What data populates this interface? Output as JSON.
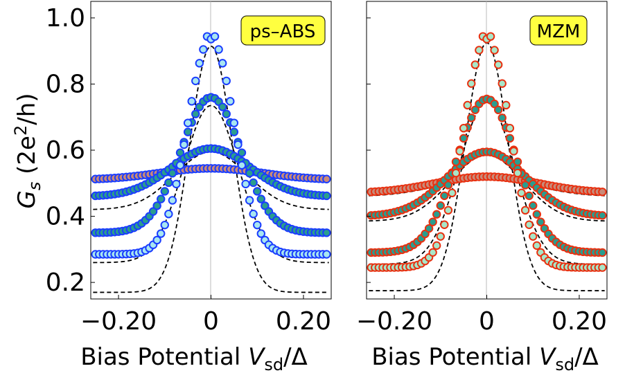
{
  "chart_data": [
    {
      "type": "scatter",
      "badge": "ps–ABS",
      "ylabel_main": "G",
      "ylabel_sub": "s",
      "ylabel_unit_open": " (2e",
      "ylabel_unit_sup": "2",
      "ylabel_unit_close": "/h)",
      "xlabel_main": "Bias Potential ",
      "xlabel_var": "V",
      "xlabel_sub": "sd",
      "xlabel_tail": "/Δ",
      "xlim": [
        -0.26,
        0.26
      ],
      "ylim": [
        0.15,
        1.05
      ],
      "xticks": [
        -0.2,
        0,
        0.2
      ],
      "xtick_labels": [
        "−0.20",
        "0",
        "0.20"
      ],
      "yticks": [
        0.2,
        0.4,
        0.6,
        0.8,
        1.0
      ],
      "ytick_labels": [
        "0.2",
        "0.4",
        "0.6",
        "0.8",
        "1.0"
      ],
      "series": [
        {
          "edge": "#1a3cff",
          "fill": "#c98a78",
          "peak": 0.545,
          "tail": 0.51,
          "width": 0.11,
          "fit_peak": 0.545,
          "fit_tail": 0.505
        },
        {
          "edge": "#1a3cff",
          "fill": "#2a9d8f",
          "peak": 0.605,
          "tail": 0.46,
          "width": 0.085,
          "fit_peak": 0.595,
          "fit_tail": 0.42
        },
        {
          "edge": "#1a3cff",
          "fill": "#2a9d8f",
          "peak": 0.76,
          "tail": 0.35,
          "width": 0.065,
          "fit_peak": 0.735,
          "fit_tail": 0.26
        },
        {
          "edge": "#1a3cff",
          "fill": "#a8e6f0",
          "peak": 0.94,
          "tail": 0.285,
          "width": 0.05,
          "fit_peak": 0.915,
          "fit_tail": 0.17
        }
      ]
    },
    {
      "type": "scatter",
      "badge": "MZM",
      "xlabel_main": "Bias Potential ",
      "xlabel_var": "V",
      "xlabel_sub": "sd",
      "xlabel_tail": "/Δ",
      "xlim": [
        -0.26,
        0.26
      ],
      "ylim": [
        0.15,
        1.05
      ],
      "xticks": [
        -0.2,
        0,
        0.2
      ],
      "xtick_labels": [
        "−0.20",
        "0",
        "0.20"
      ],
      "yticks": [
        0.2,
        0.4,
        0.6,
        0.8,
        1.0
      ],
      "series": [
        {
          "edge": "#e83010",
          "fill": "#c98a78",
          "peak": 0.52,
          "tail": 0.47,
          "width": 0.11,
          "fit_peak": 0.515,
          "fit_tail": 0.46
        },
        {
          "edge": "#e83010",
          "fill": "#2a9d8f",
          "peak": 0.595,
          "tail": 0.4,
          "width": 0.085,
          "fit_peak": 0.585,
          "fit_tail": 0.385
        },
        {
          "edge": "#e83010",
          "fill": "#2a9d8f",
          "peak": 0.755,
          "tail": 0.29,
          "width": 0.065,
          "fit_peak": 0.745,
          "fit_tail": 0.255
        },
        {
          "edge": "#e83010",
          "fill": "#a8e6c8",
          "peak": 0.94,
          "tail": 0.245,
          "width": 0.05,
          "fit_peak": 0.925,
          "fit_tail": 0.175
        }
      ]
    }
  ]
}
